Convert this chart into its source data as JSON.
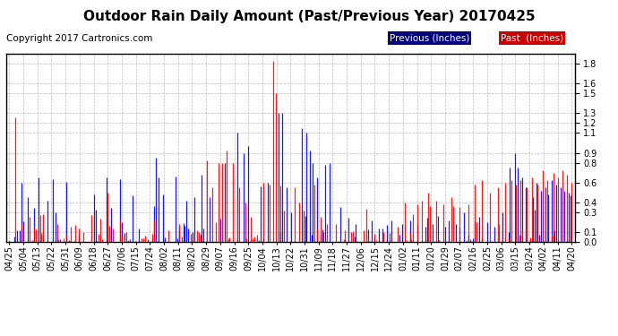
{
  "title": "Outdoor Rain Daily Amount (Past/Previous Year) 20170425",
  "copyright": "Copyright 2017 Cartronics.com",
  "legend_labels": [
    "Previous (Inches)",
    "Past  (Inches)"
  ],
  "legend_bg_colors": [
    "#000080",
    "#CC0000"
  ],
  "legend_text_color": "#FFFFFF",
  "ylim": [
    0.0,
    1.9
  ],
  "yticks": [
    0.0,
    0.1,
    0.3,
    0.4,
    0.6,
    0.8,
    0.9,
    1.1,
    1.2,
    1.3,
    1.5,
    1.6,
    1.8
  ],
  "x_labels": [
    "04/25",
    "05/04",
    "05/13",
    "05/22",
    "05/31",
    "06/09",
    "06/18",
    "06/27",
    "07/06",
    "07/15",
    "07/24",
    "08/02",
    "08/11",
    "08/20",
    "08/29",
    "09/07",
    "09/16",
    "09/25",
    "10/04",
    "10/13",
    "10/22",
    "10/31",
    "11/09",
    "11/18",
    "11/27",
    "12/06",
    "12/15",
    "12/24",
    "01/02",
    "01/11",
    "01/20",
    "01/29",
    "02/07",
    "02/16",
    "02/25",
    "03/06",
    "03/15",
    "03/24",
    "04/02",
    "04/11",
    "04/20"
  ],
  "bg_color": "#FFFFFF",
  "grid_color": "#AAAAAA",
  "previous_color": "#0000FF",
  "past_color": "#FF0000",
  "n_points": 366,
  "title_fontsize": 11,
  "copyright_fontsize": 7.5,
  "tick_fontsize": 7,
  "border_color": "#000000"
}
